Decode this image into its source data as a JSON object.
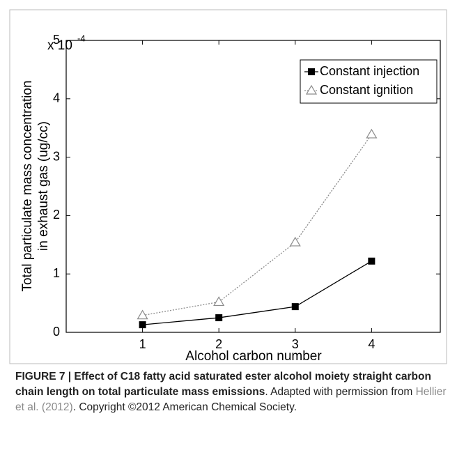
{
  "chart_data": {
    "type": "line",
    "y_label": [
      "Total particulate mass concentration",
      "in exhaust gas (ug/cc)"
    ],
    "x_label": "Alcohol carbon number",
    "y_scale_label": {
      "base": "x 10",
      "exponent": "-4"
    },
    "x": [
      1,
      2,
      3,
      4
    ],
    "series": [
      {
        "name": "Constant injection",
        "color": "#000000",
        "marker": "square",
        "dash": "solid",
        "values": [
          0.13,
          0.25,
          0.44,
          1.22
        ]
      },
      {
        "name": "Constant ignition",
        "color": "#8c8c8c",
        "marker": "triangle",
        "dash": "dotted",
        "values": [
          0.29,
          0.52,
          1.54,
          3.39
        ]
      }
    ],
    "xlim": [
      0,
      4.9
    ],
    "xticks": [
      1,
      2,
      3,
      4
    ],
    "ylim": [
      0,
      5
    ],
    "yticks": [
      0,
      1,
      2,
      3,
      4,
      5
    ],
    "legend": "northeast"
  },
  "caption": {
    "bold": "FIGURE 7 | Effect of C18 fatty acid saturated ester alcohol moiety straight carbon chain length on total particulate mass emissions",
    "adapted": ". Adapted with permission from",
    "citation": "Hellier et al. (2012)",
    "rest": ". Copyright ©2012 American Chemical Society."
  }
}
